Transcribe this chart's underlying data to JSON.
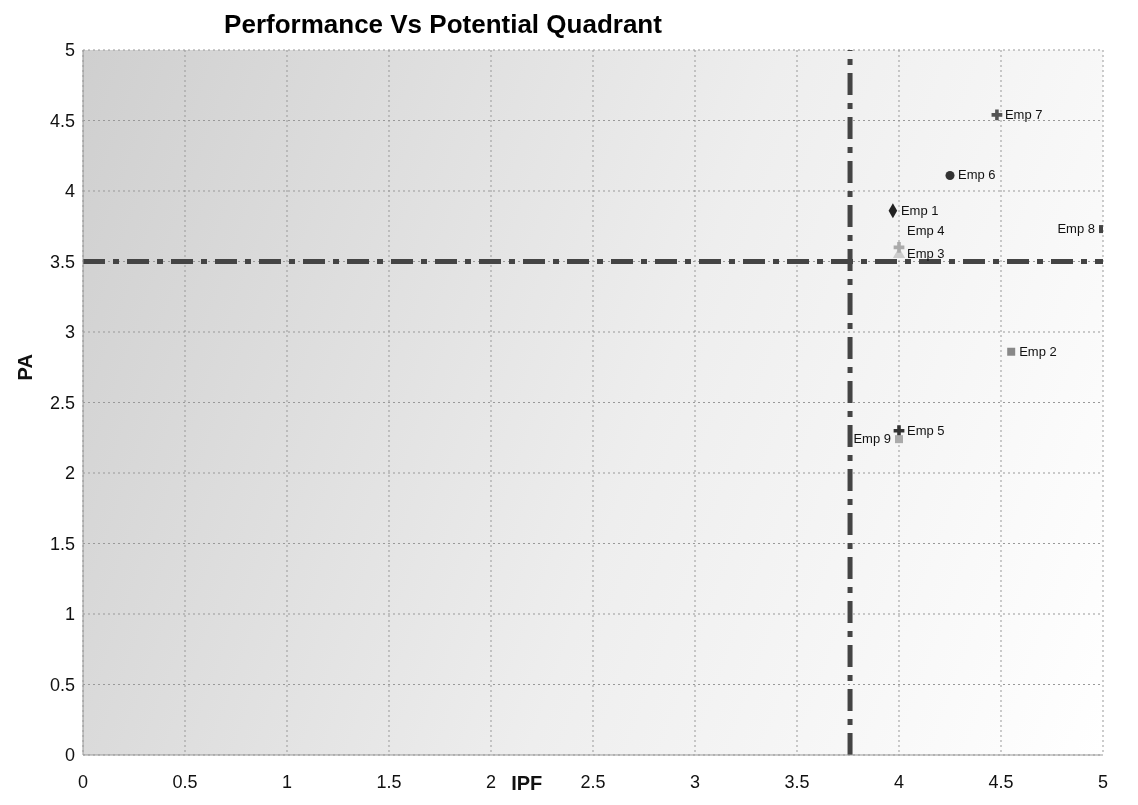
{
  "chart_data": {
    "type": "scatter",
    "title": "Performance Vs Potential Quadrant",
    "xlabel": "IPF",
    "ylabel": "PA",
    "xlim": [
      0,
      5
    ],
    "ylim": [
      0,
      5
    ],
    "xticks": [
      0,
      0.5,
      1,
      1.5,
      2,
      2.5,
      3,
      3.5,
      4,
      4.5,
      5
    ],
    "yticks": [
      0,
      0.5,
      1,
      1.5,
      2,
      2.5,
      3,
      3.5,
      4,
      4.5,
      5
    ],
    "grid": true,
    "series": [
      {
        "name": "Emp 1",
        "color": "#222222",
        "marker": "diamond",
        "x": [
          3.97
        ],
        "values": [
          3.86
        ]
      },
      {
        "name": "Emp 2",
        "color": "#888888",
        "marker": "square",
        "x": [
          4.55
        ],
        "values": [
          2.86
        ]
      },
      {
        "name": "Emp 3",
        "color": "#cccccc",
        "marker": "triangle",
        "x": [
          4.0
        ],
        "values": [
          3.55
        ]
      },
      {
        "name": "Emp 4",
        "color": "#aaaaaa",
        "marker": "cross",
        "x": [
          4.0
        ],
        "values": [
          3.6
        ]
      },
      {
        "name": "Emp 5",
        "color": "#333333",
        "marker": "cross",
        "x": [
          4.0
        ],
        "values": [
          2.3
        ]
      },
      {
        "name": "Emp 6",
        "color": "#333333",
        "marker": "circle",
        "x": [
          4.25
        ],
        "values": [
          4.11
        ]
      },
      {
        "name": "Emp 7",
        "color": "#555555",
        "marker": "cross",
        "x": [
          4.48
        ],
        "values": [
          4.54
        ]
      },
      {
        "name": "Emp 8",
        "color": "#444444",
        "marker": "square",
        "x": [
          5.0
        ],
        "values": [
          3.73
        ]
      },
      {
        "name": "Emp 9",
        "color": "#aaaaaa",
        "marker": "square",
        "x": [
          4.0
        ],
        "values": [
          2.24
        ]
      }
    ],
    "ref_lines": [
      {
        "axis": "x",
        "value": 3.76,
        "color": "#444444",
        "line_style": "dashed"
      },
      {
        "axis": "y",
        "value": 3.5,
        "color": "#444444",
        "line_style": "dashed"
      }
    ]
  }
}
